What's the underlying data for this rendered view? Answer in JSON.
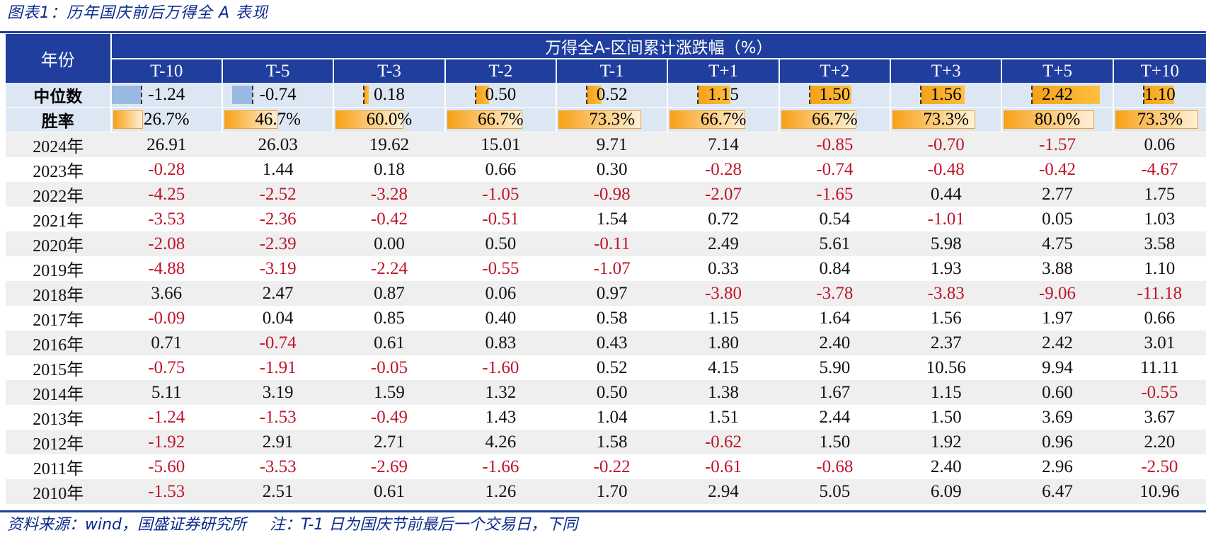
{
  "title": "图表1：历年国庆前后万得全 A 表现",
  "table": {
    "corner_label": "年份",
    "group_label": "万得全A-区间累计涨跌幅（%）",
    "columns": [
      "T-10",
      "T-5",
      "T-3",
      "T-2",
      "T-1",
      "T+1",
      "T+2",
      "T+3",
      "T+5",
      "T+10"
    ],
    "median": {
      "label": "中位数",
      "values": [
        "-1.24",
        "-0.74",
        "0.18",
        "0.50",
        "0.52",
        "1.15",
        "1.50",
        "1.56",
        "2.42",
        "1.10"
      ]
    },
    "win_rate": {
      "label": "胜率",
      "values": [
        "26.7%",
        "46.7%",
        "60.0%",
        "66.7%",
        "73.3%",
        "66.7%",
        "66.7%",
        "73.3%",
        "80.0%",
        "73.3%"
      ],
      "fractions": [
        0.267,
        0.467,
        0.6,
        0.667,
        0.733,
        0.667,
        0.667,
        0.733,
        0.8,
        0.733
      ]
    },
    "rows": [
      {
        "year": "2024年",
        "values": [
          "26.91",
          "26.03",
          "19.62",
          "15.01",
          "9.71",
          "7.14",
          "-0.85",
          "-0.70",
          "-1.57",
          "0.06"
        ]
      },
      {
        "year": "2023年",
        "values": [
          "-0.28",
          "1.44",
          "0.18",
          "0.66",
          "0.30",
          "-0.28",
          "-0.74",
          "-0.48",
          "-0.42",
          "-4.67"
        ]
      },
      {
        "year": "2022年",
        "values": [
          "-4.25",
          "-2.52",
          "-3.28",
          "-1.05",
          "-0.98",
          "-2.07",
          "-1.65",
          "0.44",
          "2.77",
          "1.75"
        ]
      },
      {
        "year": "2021年",
        "values": [
          "-3.53",
          "-2.36",
          "-0.42",
          "-0.51",
          "1.54",
          "0.72",
          "0.54",
          "-1.01",
          "0.05",
          "1.03"
        ]
      },
      {
        "year": "2020年",
        "values": [
          "-2.08",
          "-2.39",
          "0.00",
          "0.50",
          "-0.11",
          "2.49",
          "5.61",
          "5.98",
          "4.75",
          "3.58"
        ]
      },
      {
        "year": "2019年",
        "values": [
          "-4.88",
          "-3.19",
          "-2.24",
          "-0.55",
          "-1.07",
          "0.33",
          "0.84",
          "1.93",
          "3.88",
          "1.10"
        ]
      },
      {
        "year": "2018年",
        "values": [
          "3.66",
          "2.47",
          "0.87",
          "0.06",
          "0.97",
          "-3.80",
          "-3.78",
          "-3.83",
          "-9.06",
          "-11.18"
        ]
      },
      {
        "year": "2017年",
        "values": [
          "-0.09",
          "0.04",
          "0.85",
          "0.40",
          "0.58",
          "1.15",
          "1.64",
          "1.56",
          "1.97",
          "0.66"
        ]
      },
      {
        "year": "2016年",
        "values": [
          "0.71",
          "-0.74",
          "0.61",
          "0.83",
          "0.43",
          "1.80",
          "2.40",
          "2.37",
          "2.42",
          "3.01"
        ]
      },
      {
        "year": "2015年",
        "values": [
          "-0.75",
          "-1.91",
          "-0.05",
          "-1.60",
          "0.52",
          "4.15",
          "5.90",
          "10.56",
          "9.94",
          "11.11"
        ]
      },
      {
        "year": "2014年",
        "values": [
          "5.11",
          "3.19",
          "1.59",
          "1.32",
          "0.50",
          "1.38",
          "1.67",
          "1.15",
          "0.60",
          "-0.55"
        ]
      },
      {
        "year": "2013年",
        "values": [
          "-1.24",
          "-1.53",
          "-0.49",
          "1.43",
          "1.04",
          "1.51",
          "2.44",
          "1.50",
          "3.69",
          "3.67"
        ]
      },
      {
        "year": "2012年",
        "values": [
          "-1.92",
          "2.91",
          "2.71",
          "4.26",
          "1.58",
          "-0.62",
          "1.50",
          "1.92",
          "0.96",
          "2.20"
        ]
      },
      {
        "year": "2011年",
        "values": [
          "-5.60",
          "-3.53",
          "-2.69",
          "-1.66",
          "-0.22",
          "-0.61",
          "-0.68",
          "2.40",
          "2.96",
          "-2.50"
        ]
      },
      {
        "year": "2010年",
        "values": [
          "-1.53",
          "2.51",
          "0.61",
          "1.26",
          "1.70",
          "2.94",
          "5.05",
          "6.09",
          "6.47",
          "10.96"
        ]
      }
    ]
  },
  "footer": {
    "source": "资料来源：wind，国盛证券研究所",
    "note": "注：T-1 日为国庆节前最后一个交易日，下同"
  },
  "colors": {
    "header_bg": "#1f3e9e",
    "stat_bg": "#dde7f4",
    "negative_text": "#c0142a",
    "positive_bar": "#f4a11a",
    "negative_bar": "#99b9e3"
  }
}
